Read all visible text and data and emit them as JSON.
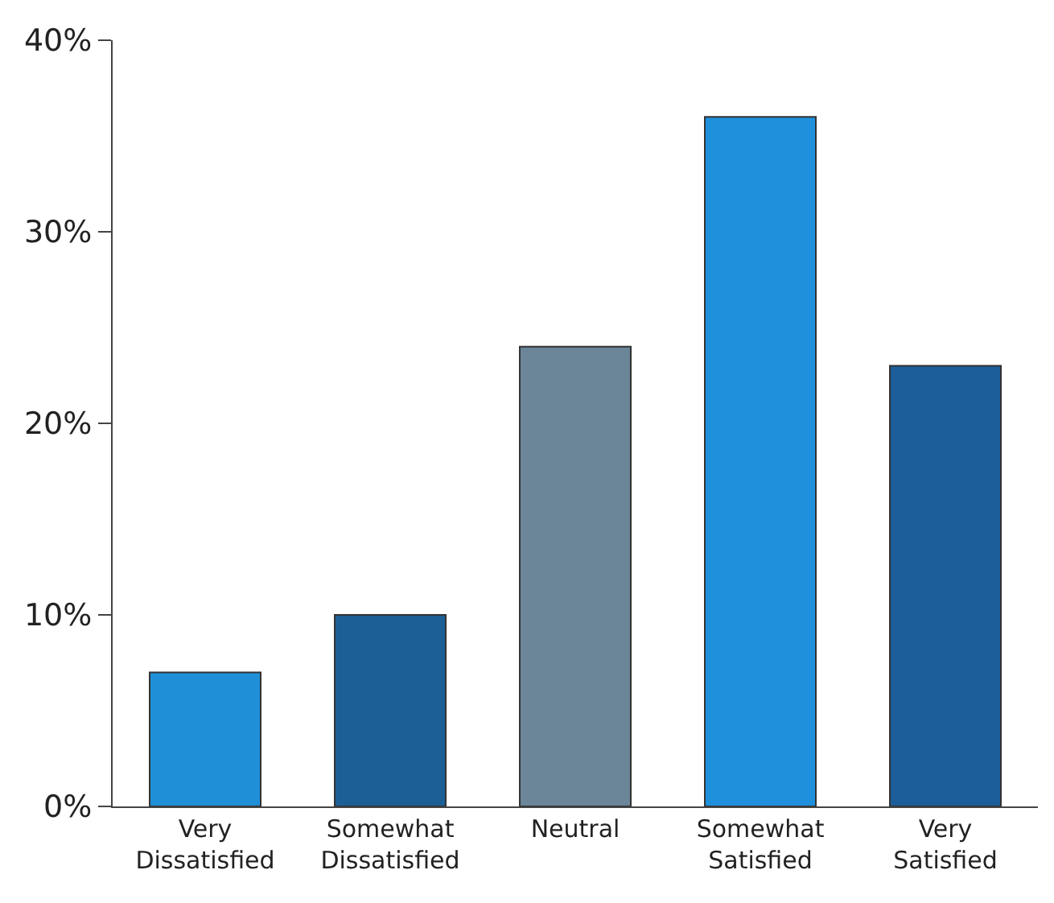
{
  "chart_data": {
    "type": "bar",
    "categories": [
      "Very Dissatisfied",
      "Somewhat Dissatisfied",
      "Neutral",
      "Somewhat Satisfied",
      "Very Satisfied"
    ],
    "values": [
      7,
      10,
      24,
      36,
      23
    ],
    "colors": [
      "#1f8fd8",
      "#1b5f96",
      "#6b8599",
      "#1f91dc",
      "#1b5e99"
    ],
    "ylim": [
      0,
      40
    ],
    "yticks": [
      {
        "value": 0,
        "label": "0%"
      },
      {
        "value": 10,
        "label": "10%"
      },
      {
        "value": 20,
        "label": "20%"
      },
      {
        "value": 30,
        "label": "30%"
      },
      {
        "value": 40,
        "label": "40%"
      }
    ],
    "orientation": "vertical"
  }
}
